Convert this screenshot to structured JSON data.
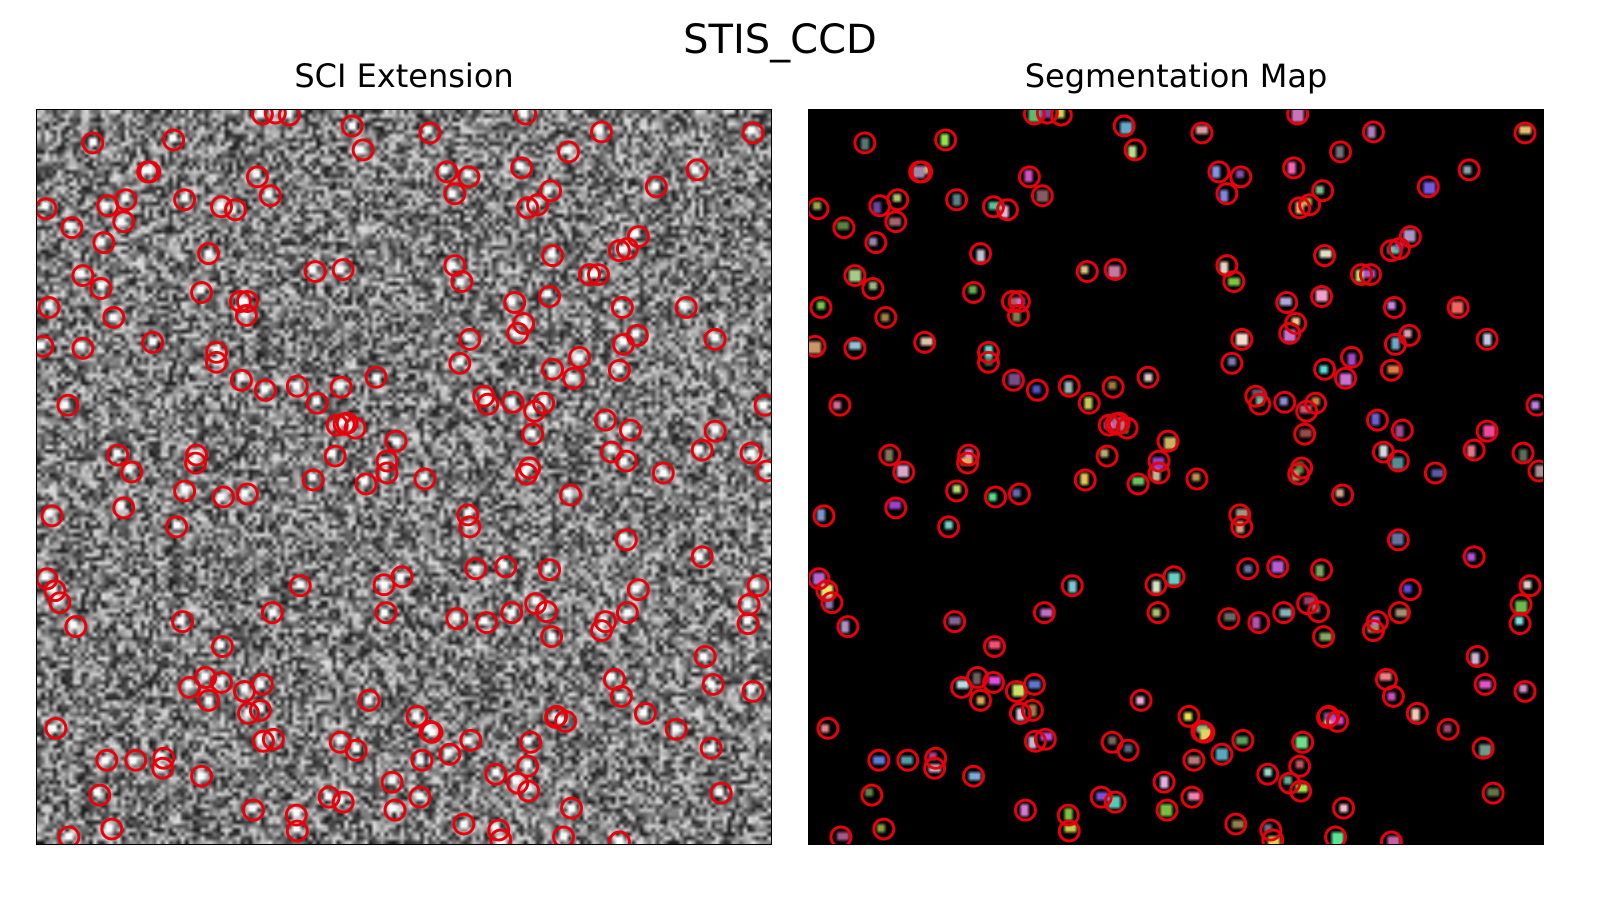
{
  "figure": {
    "title": "STIS_CCD"
  },
  "panels": [
    {
      "title": "SCI Extension",
      "content": "grayscale-noise-image-with-sources"
    },
    {
      "title": "Segmentation Map",
      "content": "black-background-with-colored-source-segments"
    }
  ],
  "colors": {
    "marker": "#e8000b",
    "sci_background": "#7a7a7a",
    "seg_background": "#000000"
  }
}
